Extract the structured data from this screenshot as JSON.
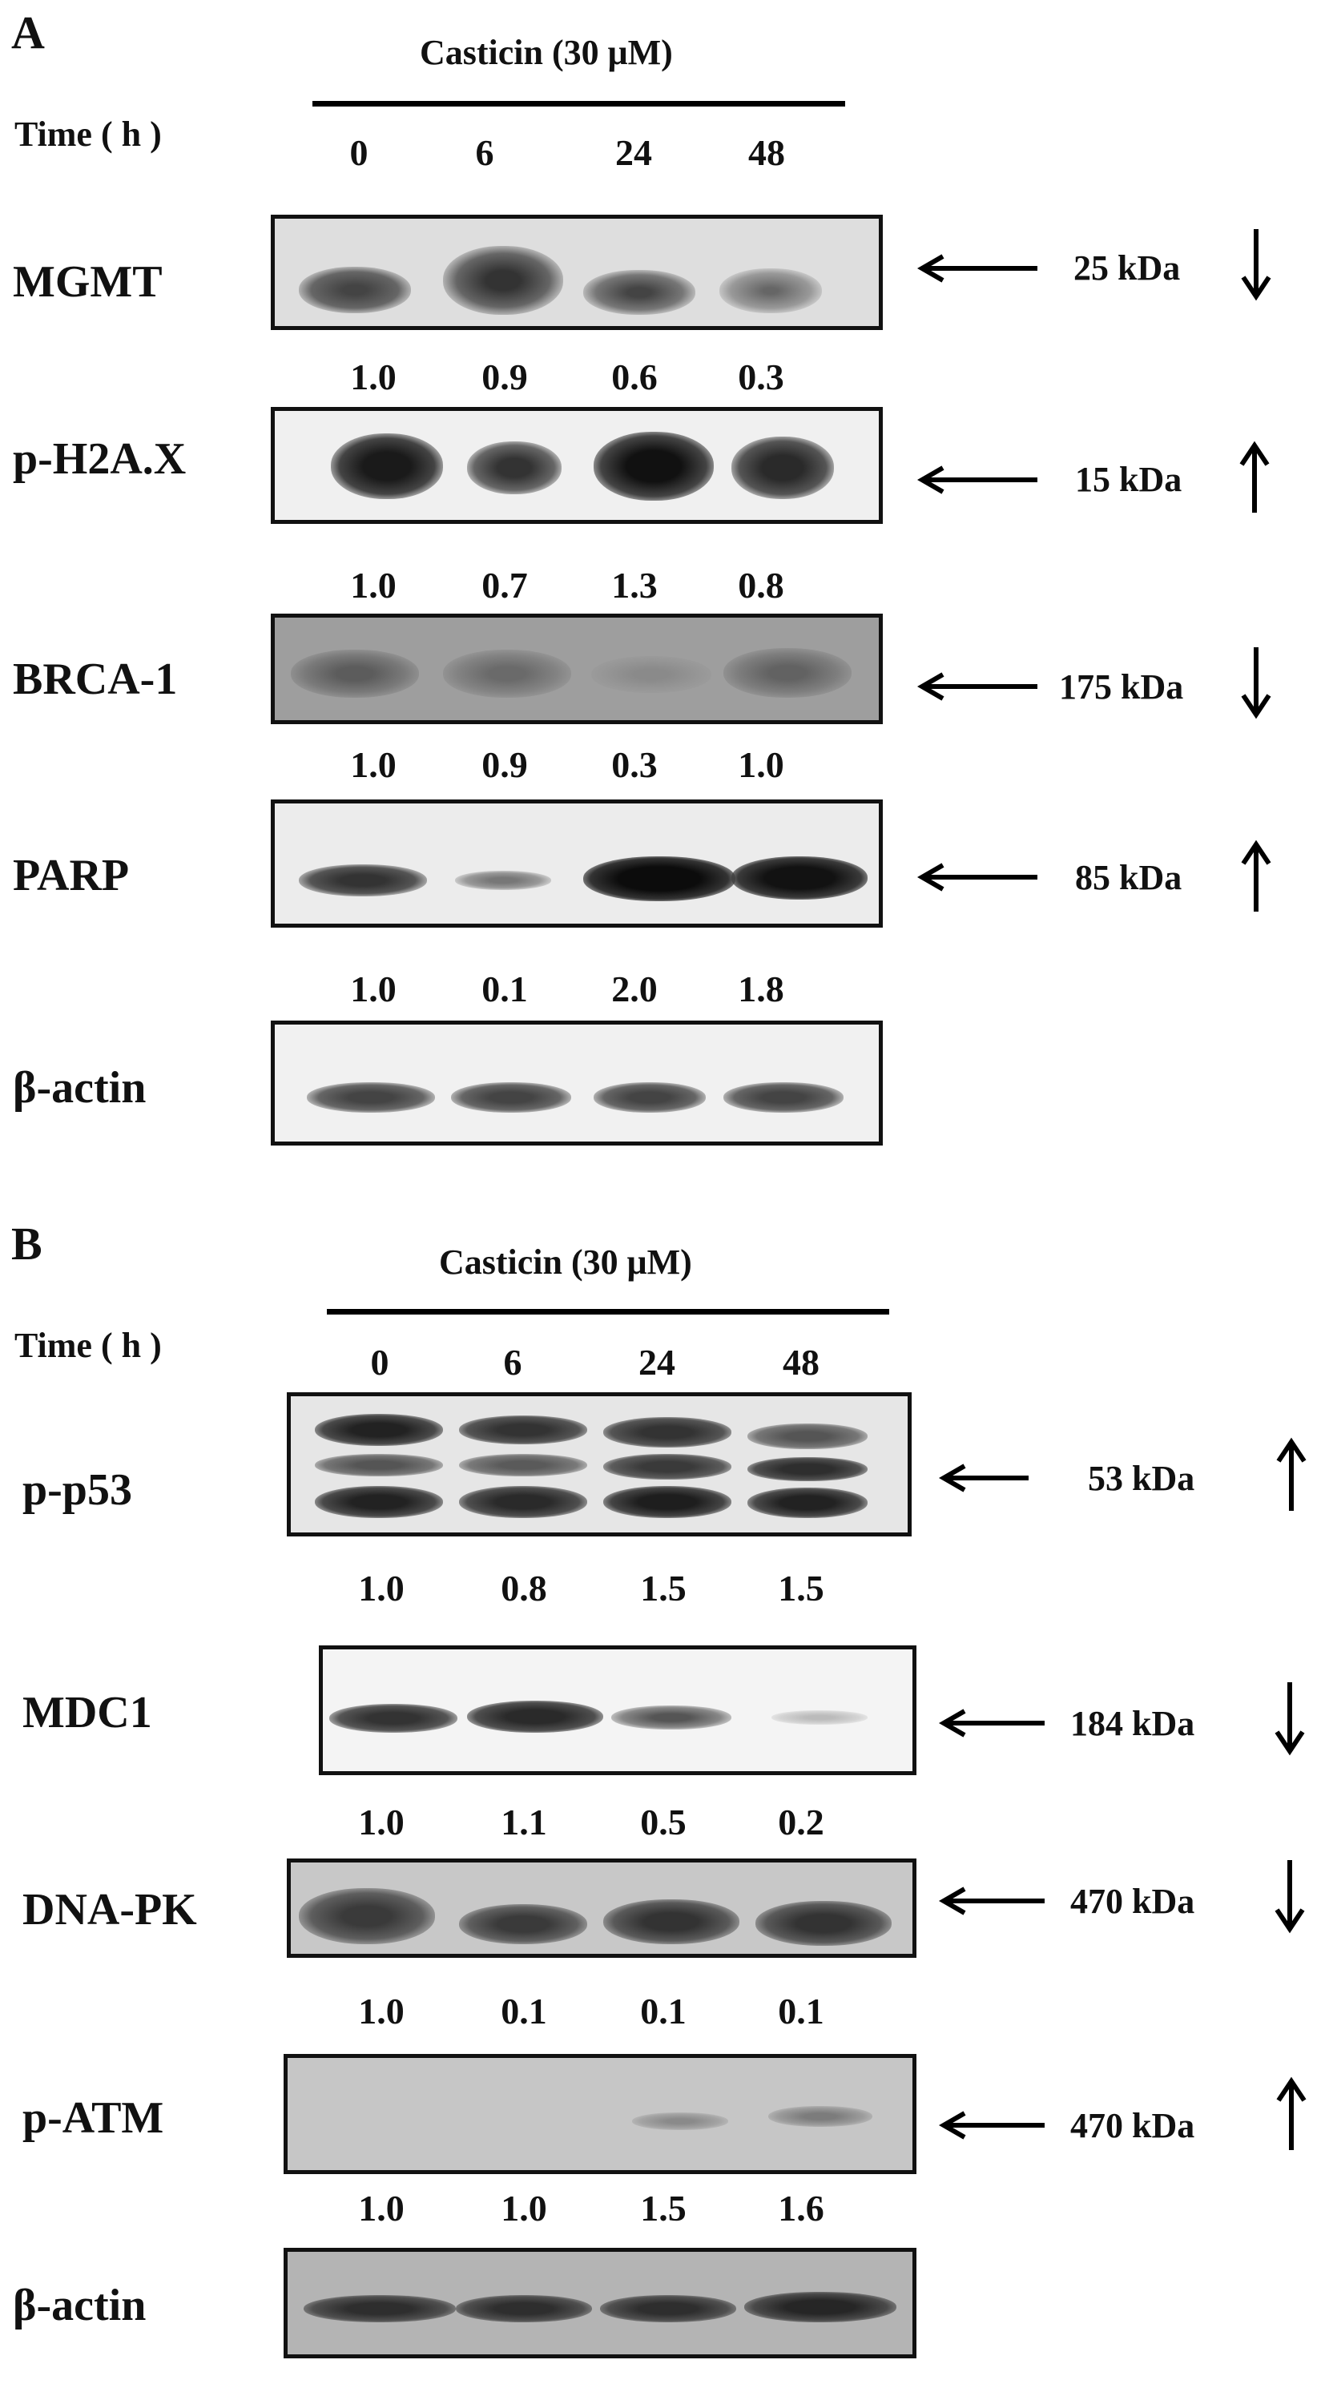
{
  "panels": [
    {
      "letter": "A",
      "treatment": "Casticin (30 μM)",
      "time_label": "Time ( h )",
      "time_points": [
        "0",
        "6",
        "24",
        "48"
      ],
      "blots": [
        {
          "protein": "MGMT",
          "kda": "25 kDa",
          "trend": "down",
          "quant": [
            "1.0",
            "0.9",
            "0.6",
            "0.3"
          ]
        },
        {
          "protein": "p-H2A.X",
          "kda": "15 kDa",
          "trend": "up",
          "quant": [
            "1.0",
            "0.7",
            "1.3",
            "0.8"
          ]
        },
        {
          "protein": "BRCA-1",
          "kda": "175 kDa",
          "trend": "down",
          "quant": [
            "1.0",
            "0.9",
            "0.3",
            "1.0"
          ]
        },
        {
          "protein": "PARP",
          "kda": "85 kDa",
          "trend": "up",
          "quant": [
            "1.0",
            "0.1",
            "2.0",
            "1.8"
          ]
        },
        {
          "protein": "β-actin",
          "kda": "",
          "trend": "",
          "quant": []
        }
      ]
    },
    {
      "letter": "B",
      "treatment": "Casticin (30 μM)",
      "time_label": "Time ( h )",
      "time_points": [
        "0",
        "6",
        "24",
        "48"
      ],
      "blots": [
        {
          "protein": "p-p53",
          "kda": "53 kDa",
          "trend": "up",
          "quant": [
            "1.0",
            "0.8",
            "1.5",
            "1.5"
          ]
        },
        {
          "protein": "MDC1",
          "kda": "184 kDa",
          "trend": "down",
          "quant": [
            "1.0",
            "1.1",
            "0.5",
            "0.2"
          ]
        },
        {
          "protein": "DNA-PK",
          "kda": "470 kDa",
          "trend": "down",
          "quant": [
            "1.0",
            "0.1",
            "0.1",
            "0.1"
          ]
        },
        {
          "protein": "p-ATM",
          "kda": "470 kDa",
          "trend": "up",
          "quant": [
            "1.0",
            "1.0",
            "1.5",
            "1.6"
          ]
        },
        {
          "protein": "β-actin",
          "kda": "",
          "trend": "",
          "quant": []
        }
      ]
    }
  ]
}
